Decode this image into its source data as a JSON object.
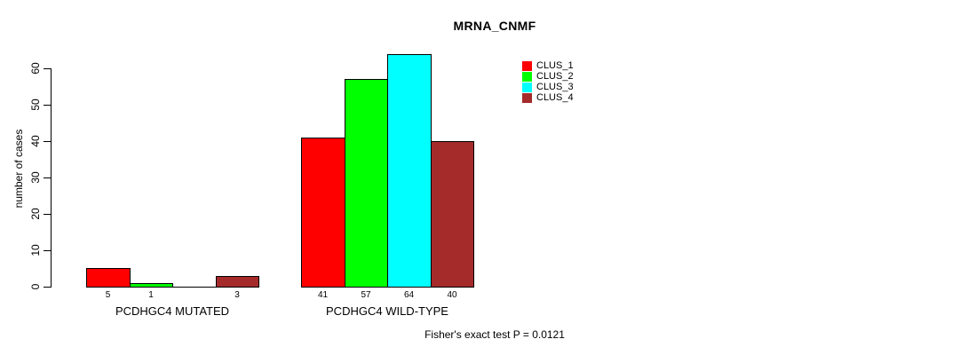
{
  "chart_data": {
    "type": "bar",
    "title": "MRNA_CNMF",
    "ylabel": "number of cases",
    "xlabel": "",
    "ylim": [
      0,
      60
    ],
    "yticks": [
      0,
      10,
      20,
      30,
      40,
      50,
      60
    ],
    "grid": false,
    "categories": [
      "PCDHGC4 MUTATED",
      "PCDHGC4 WILD-TYPE"
    ],
    "series": [
      {
        "name": "CLUS_1",
        "color": "#ff0000",
        "values": [
          5,
          41
        ]
      },
      {
        "name": "CLUS_2",
        "color": "#00ff00",
        "values": [
          1,
          57
        ]
      },
      {
        "name": "CLUS_3",
        "color": "#00ffff",
        "values": [
          0,
          64
        ]
      },
      {
        "name": "CLUS_4",
        "color": "#a52a2a",
        "values": [
          3,
          40
        ]
      }
    ],
    "bar_value_labels": [
      [
        "5",
        "1",
        "",
        "3"
      ],
      [
        "41",
        "57",
        "64",
        "40"
      ]
    ],
    "legend": {
      "position": "right",
      "entries": [
        "CLUS_1",
        "CLUS_2",
        "CLUS_3",
        "CLUS_4"
      ]
    },
    "annotation": "Fisher's exact test P = 0.0121"
  }
}
